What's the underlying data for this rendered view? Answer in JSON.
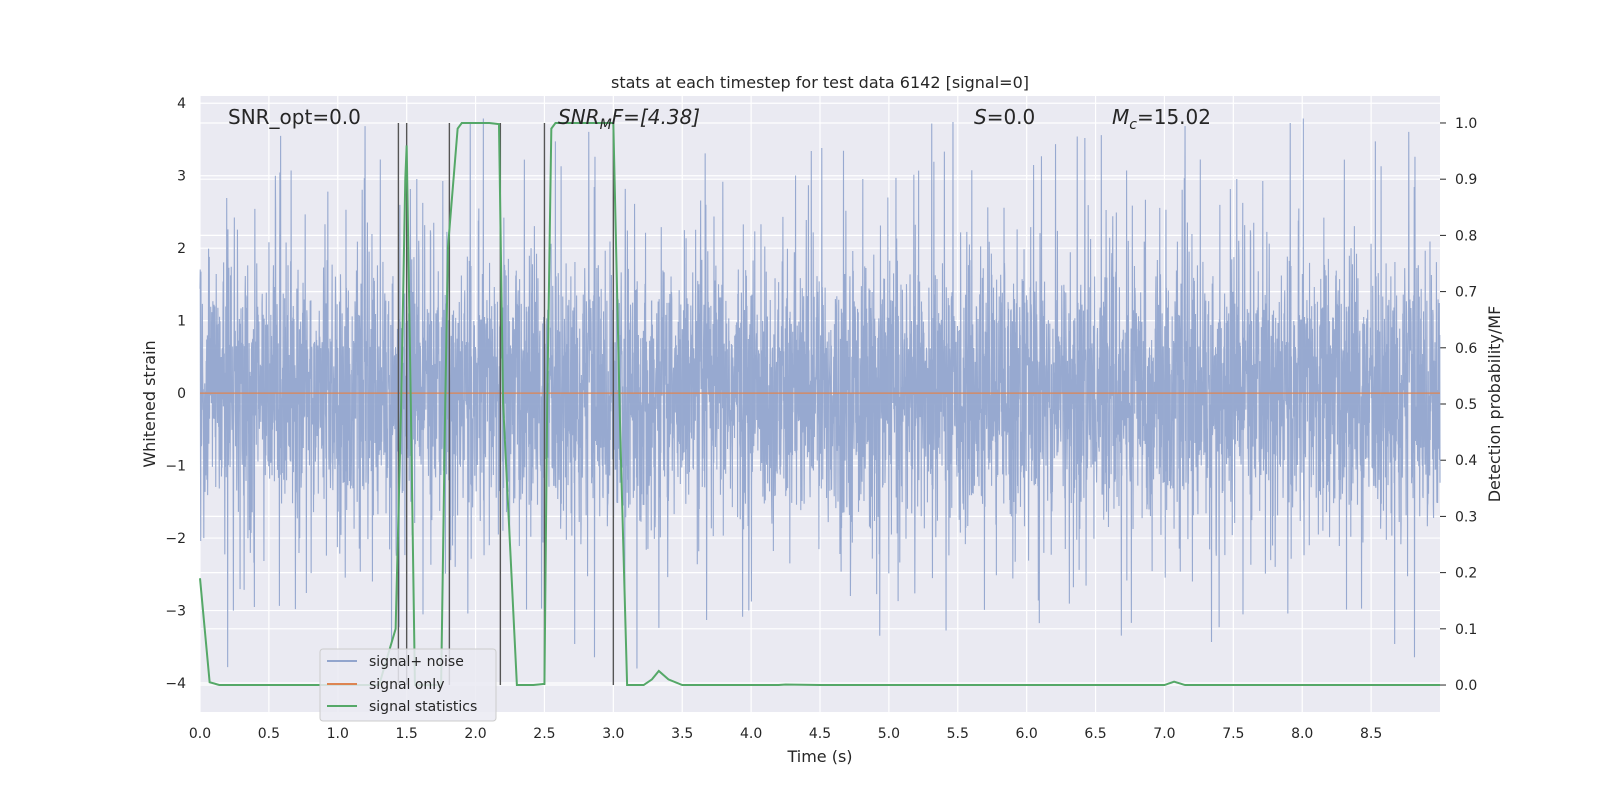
{
  "chart_data": {
    "type": "line",
    "title": "stats at each timestep for test data 6142 [signal=0]",
    "xlabel": "Time (s)",
    "ylabel_left": "Whitened strain",
    "ylabel_right": "Detection probability/MF",
    "xlim": [
      0,
      9
    ],
    "ylim_left": [
      -4.4,
      4.1
    ],
    "ylim_right": [
      -0.048,
      1.048
    ],
    "x_ticks": [
      "0.0",
      "0.5",
      "1.0",
      "1.5",
      "2.0",
      "2.5",
      "3.0",
      "3.5",
      "4.0",
      "4.5",
      "5.0",
      "5.5",
      "6.0",
      "6.5",
      "7.0",
      "7.5",
      "8.0",
      "8.5"
    ],
    "y_left_ticks": [
      "4",
      "3",
      "2",
      "1",
      "0",
      "−1",
      "−2",
      "−3",
      "−4"
    ],
    "y_right_ticks": [
      "1.0",
      "0.9",
      "0.8",
      "0.7",
      "0.6",
      "0.5",
      "0.4",
      "0.3",
      "0.2",
      "0.1",
      "0.0"
    ],
    "annotations": {
      "snr_opt": "SNR_opt=0.0",
      "snr_mf_main": "SNR",
      "snr_mf_sub": "M",
      "snr_mf_rest": "F=[4.38]",
      "s_main": "S",
      "s_rest": "=0.0",
      "mc_main": "M",
      "mc_sub": "c",
      "mc_rest": "=15.02"
    },
    "legend": {
      "position": "lower-left",
      "entries": [
        "signal+ noise",
        "signal only",
        "signal statistics"
      ]
    },
    "colors": {
      "noise": "#92a5cd",
      "signal": "#dd8452",
      "stats": "#55a868",
      "vlines": "#555555",
      "background": "#eaeaf2",
      "grid": "#ffffff"
    },
    "series": [
      {
        "name": "signal statistics",
        "axis": "right",
        "x": [
          0.0,
          0.07,
          0.14,
          0.5,
          1.0,
          1.3,
          1.42,
          1.46,
          1.49,
          1.5,
          1.53,
          1.56,
          1.62,
          1.75,
          1.78,
          1.8,
          1.87,
          1.9,
          2.0,
          2.1,
          2.17,
          2.2,
          2.3,
          2.42,
          2.5,
          2.52,
          2.55,
          2.58,
          2.65,
          2.8,
          2.95,
          3.0,
          3.05,
          3.1,
          3.14,
          3.22,
          3.28,
          3.33,
          3.4,
          3.5,
          3.8,
          4.2,
          4.25,
          4.5,
          5.0,
          6.0,
          7.0,
          7.07,
          7.15,
          8.0,
          9.0
        ],
        "y": [
          0.19,
          0.005,
          0.0,
          0.0,
          0.0,
          0.0,
          0.1,
          0.5,
          0.9,
          0.96,
          0.5,
          0.0,
          0.0,
          0.0,
          0.5,
          0.78,
          0.99,
          1.0,
          1.0,
          1.0,
          0.998,
          0.5,
          0.0,
          0.0,
          0.002,
          0.5,
          0.99,
          1.0,
          1.0,
          1.0,
          1.0,
          1.0,
          0.45,
          0.0,
          0.0,
          0.0,
          0.01,
          0.025,
          0.01,
          0.0,
          0.0,
          0.0,
          0.001,
          0.0,
          0.0,
          0.0,
          0.0,
          0.006,
          0.0,
          0.0,
          0.0
        ]
      },
      {
        "name": "signal only",
        "axis": "left",
        "x": [
          0,
          9
        ],
        "y": [
          0,
          0
        ]
      }
    ],
    "vertical_lines_x": [
      1.44,
      1.5,
      1.81,
      2.18,
      2.5,
      3.0
    ],
    "noise_envelope": {
      "typical_abs": 1.5,
      "max_abs": 3.8
    }
  }
}
